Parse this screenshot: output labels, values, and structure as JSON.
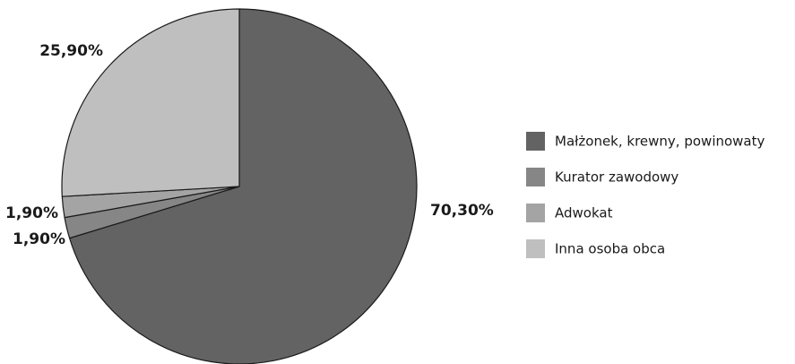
{
  "chart_data": {
    "type": "pie",
    "start": "top",
    "direction": "clockwise",
    "legend_position": "right",
    "categories": [
      "Małżonek, krewny, powinowaty",
      "Kurator zawodowy",
      "Adwokat",
      "Inna osoba obca"
    ],
    "values": [
      70.3,
      1.9,
      1.9,
      25.9
    ],
    "labels": [
      "70,30%",
      "1,90%",
      "1,90%",
      "25,90%"
    ],
    "colors": [
      "#636363",
      "#868686",
      "#a4a4a4",
      "#bfbfbf"
    ],
    "slice_edge_color": "#1a1a1a"
  }
}
